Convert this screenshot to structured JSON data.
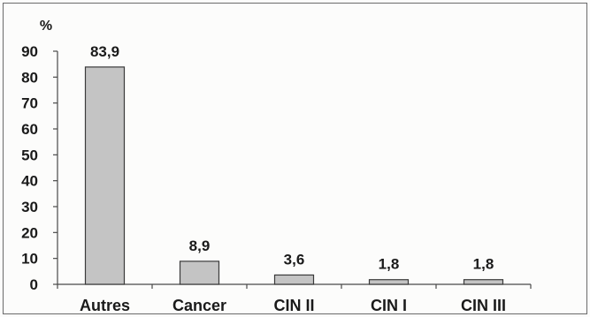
{
  "chart_data": {
    "type": "bar",
    "ylabel": "%",
    "categories": [
      "Autres",
      "Cancer",
      "CIN II",
      "CIN I",
      "CIN III"
    ],
    "values": [
      83.9,
      8.9,
      3.6,
      1.8,
      1.8
    ],
    "value_labels": [
      "83,9",
      "8,9",
      "3,6",
      "1,8",
      "1,8"
    ],
    "ylim": [
      0,
      90
    ],
    "yticks": [
      "0",
      "10",
      "20",
      "30",
      "40",
      "50",
      "60",
      "70",
      "80",
      "90"
    ],
    "grid": false,
    "legend": "none",
    "colors": {
      "bar_fill": "#c4c4c4",
      "bar_stroke": "#3a3a3a",
      "axis": "#4a4a4a",
      "frame": "#6a6a6a"
    }
  }
}
